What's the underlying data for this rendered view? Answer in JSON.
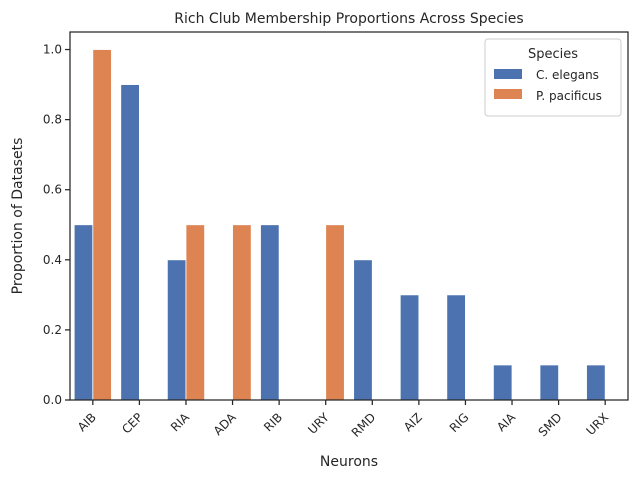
{
  "chart_data": {
    "type": "bar",
    "title": "Rich Club Membership Proportions Across Species",
    "xlabel": "Neurons",
    "ylabel": "Proportion of Datasets",
    "categories": [
      "AIB",
      "CEP",
      "RIA",
      "ADA",
      "RIB",
      "URY",
      "RMD",
      "AIZ",
      "RIG",
      "AIA",
      "SMD",
      "URX"
    ],
    "series": [
      {
        "name": "C. elegans",
        "color": "#4c72b0",
        "values": [
          0.5,
          0.9,
          0.4,
          0.0,
          0.5,
          0.0,
          0.4,
          0.3,
          0.3,
          0.1,
          0.1,
          0.1
        ]
      },
      {
        "name": "P. pacificus",
        "color": "#dd8452",
        "values": [
          1.0,
          0.0,
          0.5,
          0.5,
          0.0,
          0.5,
          0.0,
          0.0,
          0.0,
          0.0,
          0.0,
          0.0
        ]
      }
    ],
    "ylim": [
      0,
      1.05
    ],
    "yticks": [
      0.0,
      0.2,
      0.4,
      0.6,
      0.8,
      1.0
    ],
    "ytick_labels": [
      "0.0",
      "0.2",
      "0.4",
      "0.6",
      "0.8",
      "1.0"
    ],
    "grid": false,
    "legend": {
      "title": "Species",
      "placement": "top-right"
    }
  }
}
